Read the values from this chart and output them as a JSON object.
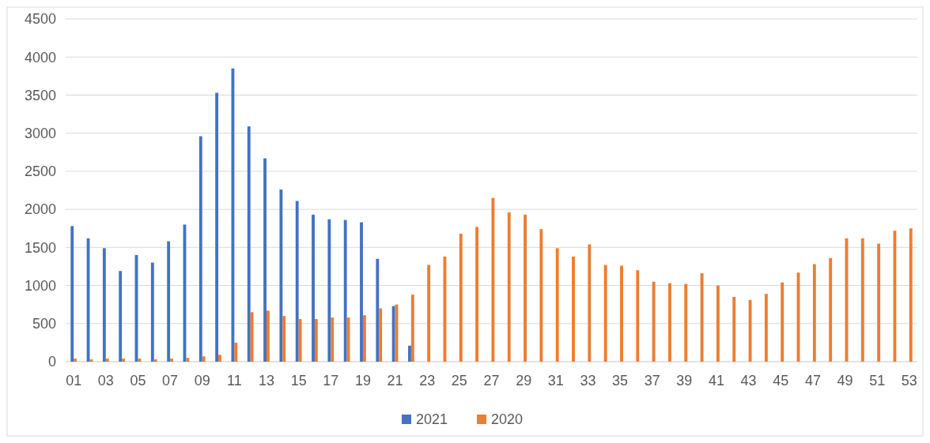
{
  "chart_data": {
    "type": "bar",
    "categories": [
      "01",
      null,
      "03",
      null,
      "05",
      null,
      "07",
      null,
      "09",
      null,
      "11",
      null,
      "13",
      null,
      "15",
      null,
      "17",
      null,
      "19",
      null,
      "21",
      null,
      "23",
      null,
      "25",
      null,
      "27",
      null,
      "29",
      null,
      "31",
      null,
      "33",
      null,
      "35",
      null,
      "37",
      null,
      "39",
      null,
      "41",
      null,
      "43",
      null,
      "45",
      null,
      "47",
      null,
      "49",
      null,
      "51",
      null,
      "53"
    ],
    "series": [
      {
        "name": "2021",
        "color": "#4472c4",
        "values": [
          1780,
          1620,
          1490,
          1190,
          1400,
          1300,
          1580,
          1800,
          2960,
          3530,
          3850,
          3090,
          2670,
          2260,
          2110,
          1930,
          1870,
          1860,
          1830,
          1350,
          730,
          210,
          null,
          null,
          null,
          null,
          null,
          null,
          null,
          null,
          null,
          null,
          null,
          null,
          null,
          null,
          null,
          null,
          null,
          null,
          null,
          null,
          null,
          null,
          null,
          null,
          null,
          null,
          null,
          null,
          null,
          null,
          null
        ]
      },
      {
        "name": "2020",
        "color": "#ed7d31",
        "values": [
          40,
          30,
          40,
          40,
          40,
          30,
          40,
          50,
          70,
          90,
          250,
          650,
          670,
          600,
          560,
          560,
          580,
          580,
          610,
          700,
          750,
          880,
          1270,
          1380,
          1680,
          1770,
          2150,
          1960,
          1930,
          1740,
          1490,
          1380,
          1540,
          1270,
          1260,
          1200,
          1050,
          1030,
          1020,
          1160,
          1000,
          850,
          810,
          890,
          1040,
          1170,
          1280,
          1360,
          1620,
          1620,
          1550,
          1720,
          1750
        ]
      }
    ],
    "ylim": [
      0,
      4500
    ],
    "yticks": [
      0,
      500,
      1000,
      1500,
      2000,
      2500,
      3000,
      3500,
      4000,
      4500
    ],
    "grid": "y",
    "legend": "bottom"
  }
}
